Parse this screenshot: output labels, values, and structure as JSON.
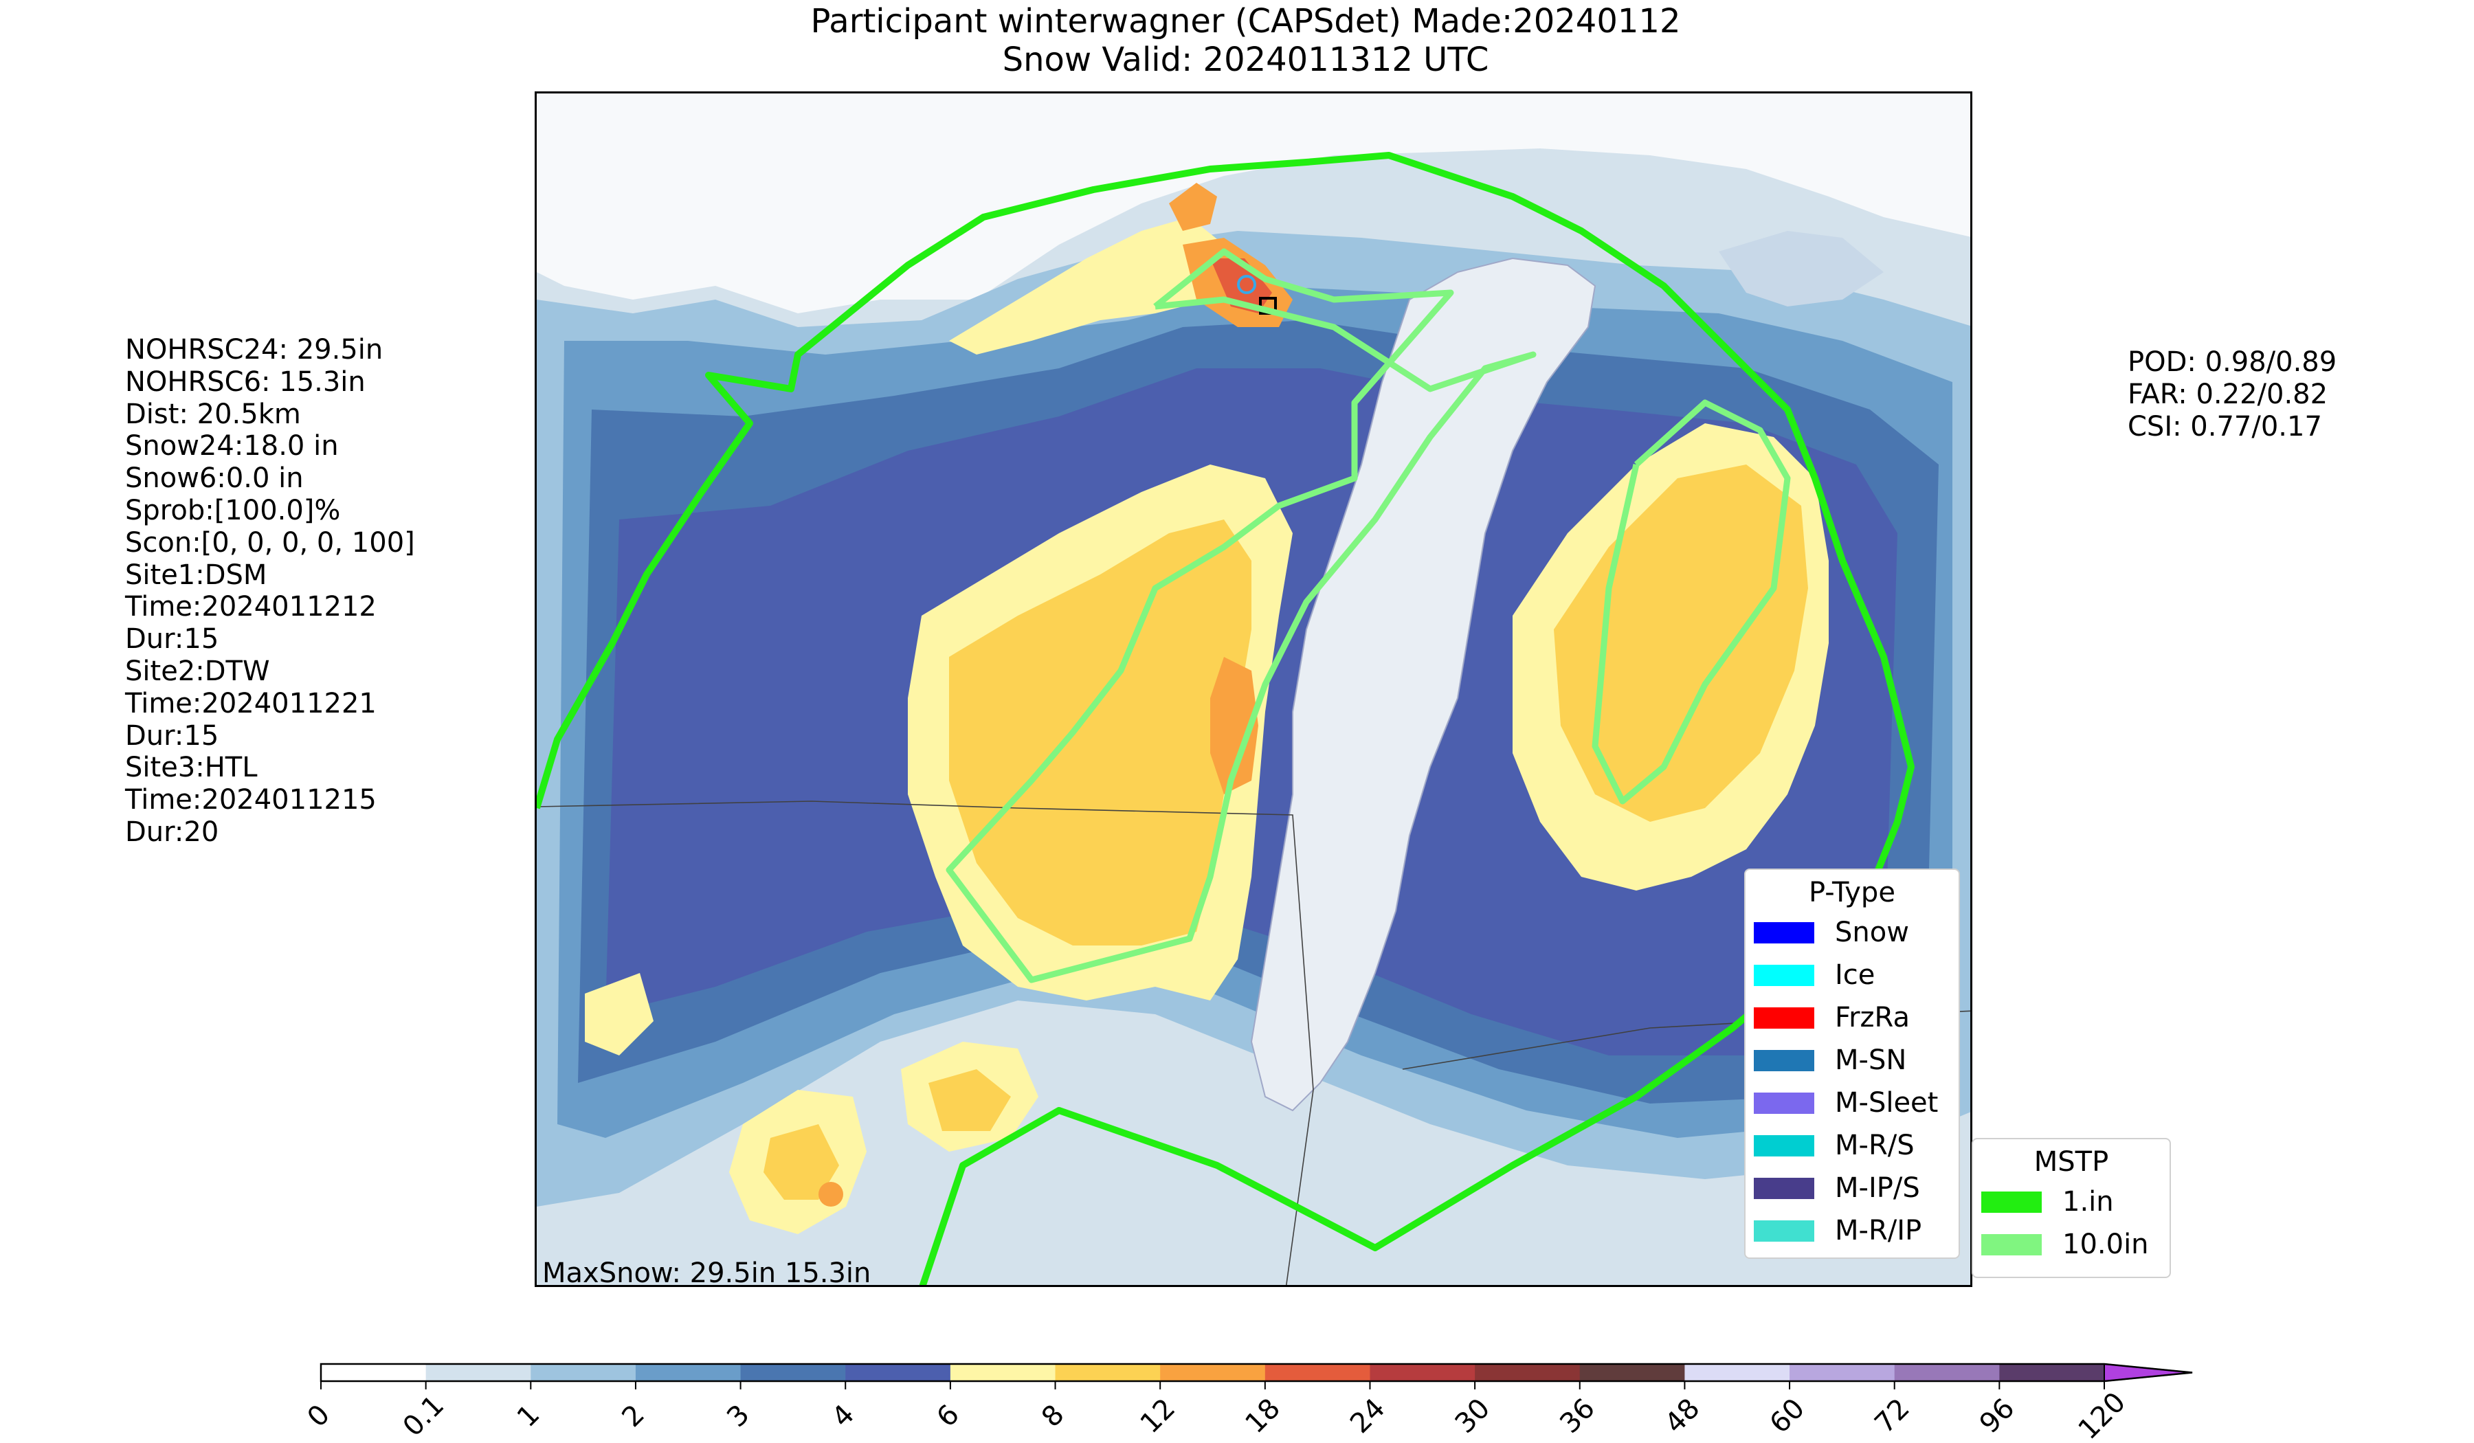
{
  "title": {
    "line1": "Participant winterwagner (CAPSdet) Made:20240112",
    "line2": "Snow Valid: 2024011312 UTC"
  },
  "left_stats": [
    "NOHRSC24: 29.5in",
    "NOHRSC6: 15.3in",
    "Dist: 20.5km",
    "Snow24:18.0 in",
    "Snow6:0.0 in",
    "Sprob:[100.0]%",
    "Scon:[0, 0, 0, 0, 100]",
    "Site1:DSM",
    "Time:2024011212",
    "Dur:15",
    "Site2:DTW",
    "Time:2024011221",
    "Dur:15",
    "Site3:HTL",
    "Time:2024011215",
    "Dur:20"
  ],
  "right_stats": [
    "POD: 0.98/0.89",
    "FAR: 0.22/0.82",
    "CSI: 0.77/0.17"
  ],
  "map": {
    "max_snow_label": "MaxSnow: 29.5in 15.3in"
  },
  "ptype_legend": {
    "title": "P-Type",
    "items": [
      {
        "label": "Snow",
        "color": "#0000ff"
      },
      {
        "label": "Ice",
        "color": "#00ffff"
      },
      {
        "label": "FrzRa",
        "color": "#ff0000"
      },
      {
        "label": "M-SN",
        "color": "#1f77b4"
      },
      {
        "label": "M-Sleet",
        "color": "#7b68ee"
      },
      {
        "label": "M-R/S",
        "color": "#00ced1"
      },
      {
        "label": "M-IP/S",
        "color": "#483d8b"
      },
      {
        "label": "M-R/IP",
        "color": "#40e0d0"
      }
    ]
  },
  "mstp_legend": {
    "title": "MSTP",
    "items": [
      {
        "label": "1.in",
        "color": "#22ee11"
      },
      {
        "label": "10.0in",
        "color": "#80f580"
      }
    ]
  },
  "colorbar": {
    "ticks": [
      "0",
      "0.1",
      "1",
      "2",
      "3",
      "4",
      "6",
      "8",
      "12",
      "18",
      "24",
      "30",
      "36",
      "48",
      "60",
      "72",
      "96",
      "120"
    ],
    "colors": [
      "#ffffff",
      "#d3e2ed",
      "#9ec4df",
      "#6a9dc9",
      "#4a76b0",
      "#4c5fae",
      "#fef6a6",
      "#fcd253",
      "#f9a240",
      "#e45c3c",
      "#b63c3e",
      "#8a3535",
      "#603c3c",
      "#dcdcf6",
      "#b8a7df",
      "#9878b8",
      "#5a3c6a"
    ],
    "extend_color": "#b040e0"
  }
}
